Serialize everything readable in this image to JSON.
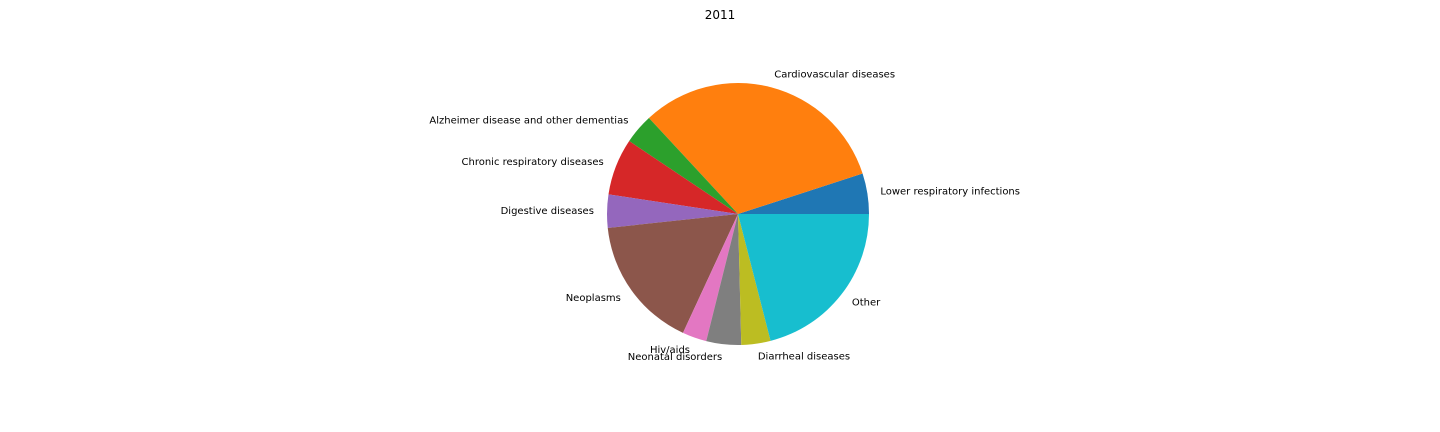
{
  "chart_data": {
    "type": "pie",
    "title": "2011",
    "start_angle_deg": 0,
    "direction": "counterclockwise",
    "slices": [
      {
        "label": "Lower respiratory infections",
        "value": 5.0,
        "color": "#1f77b4"
      },
      {
        "label": "Cardiovascular diseases",
        "value": 31.9,
        "color": "#ff7f0e"
      },
      {
        "label": "Alzheimer disease and other dementias",
        "value": 3.7,
        "color": "#2ca02c"
      },
      {
        "label": "Chronic respiratory diseases",
        "value": 7.0,
        "color": "#d62728"
      },
      {
        "label": "Digestive diseases",
        "value": 4.1,
        "color": "#9467bd"
      },
      {
        "label": "Neoplasms",
        "value": 16.4,
        "color": "#8c564b"
      },
      {
        "label": "Hiv/aids",
        "value": 3.0,
        "color": "#e377c2"
      },
      {
        "label": "Neonatal disorders",
        "value": 4.3,
        "color": "#7f7f7f"
      },
      {
        "label": "Diarrheal diseases",
        "value": 3.6,
        "color": "#bcbd22"
      },
      {
        "label": "Other",
        "value": 21.0,
        "color": "#17becf"
      }
    ]
  }
}
